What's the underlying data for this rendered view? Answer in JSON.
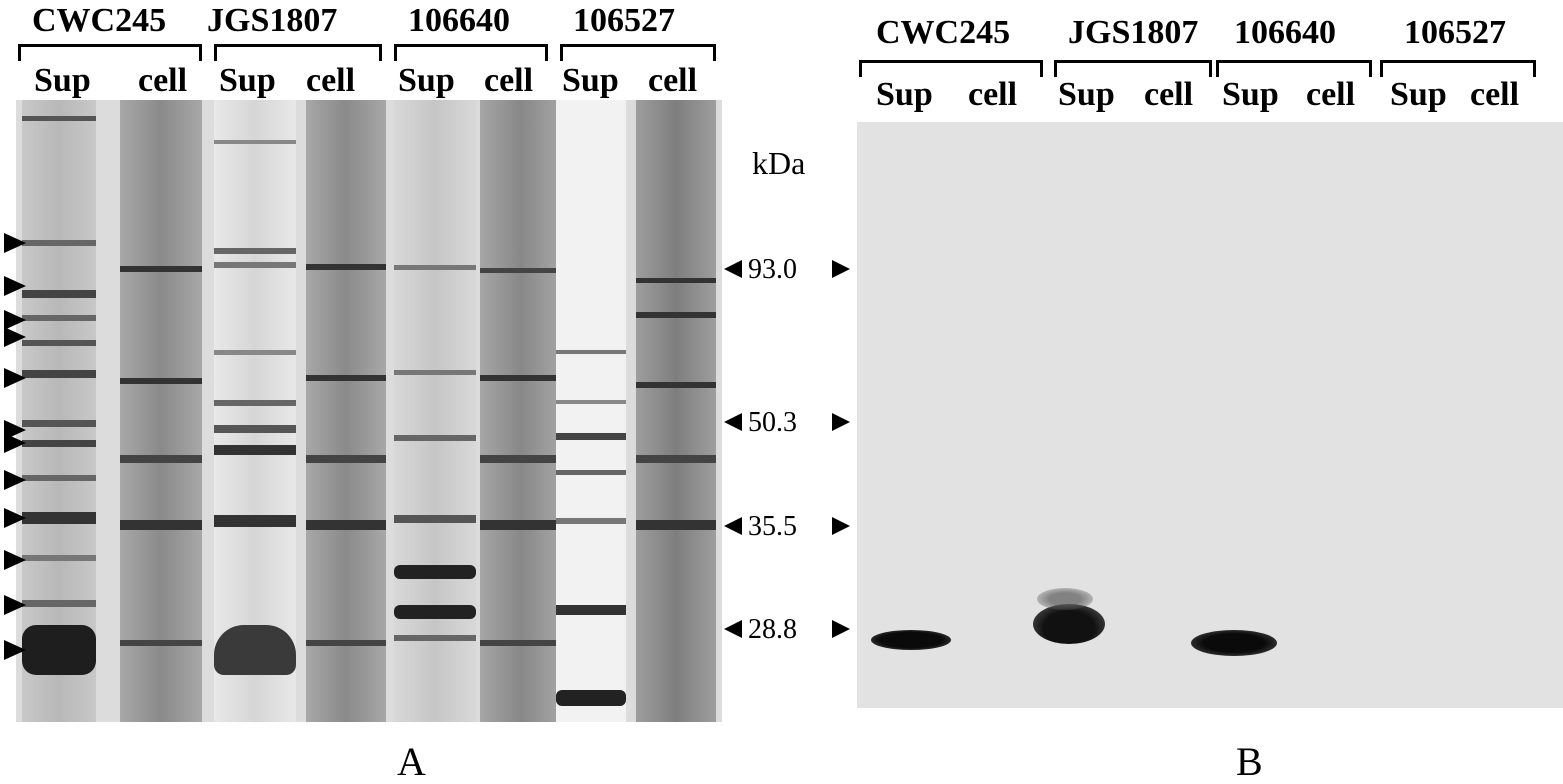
{
  "panel_a": {
    "strains": [
      "CWC245",
      "JGS1807",
      "106640",
      "106527"
    ],
    "lane_labels": [
      "Sup",
      "cell",
      "Sup",
      "cell",
      "Sup",
      "cell",
      "Sup",
      "cell"
    ],
    "letter": "A"
  },
  "markers": {
    "unit": "kDa",
    "values": [
      "93.0",
      "50.3",
      "35.5",
      "28.8"
    ]
  },
  "panel_b": {
    "strains": [
      "CWC245",
      "JGS1807",
      "106640",
      "106527"
    ],
    "lane_labels": [
      "Sup",
      "cell",
      "Sup",
      "cell",
      "Sup",
      "cell",
      "Sup",
      "cell"
    ],
    "letter": "B"
  },
  "colors": {
    "gel_background": "#d9d9d9",
    "blot_background": "#e2e2e2",
    "band": "#1a1a1a"
  }
}
